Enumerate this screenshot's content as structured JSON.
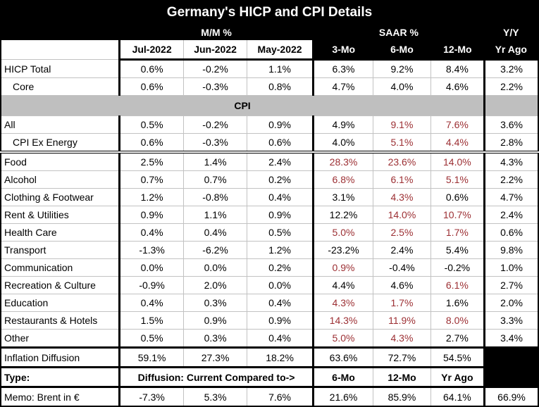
{
  "title": "Germany's HICP and CPI Details",
  "colors": {
    "red_value": "#9c2f33",
    "section_band": "#bfbfbf",
    "header_bg": "#000000"
  },
  "chart_data": {
    "type": "table",
    "title": "Germany's HICP and CPI Details",
    "column_groups": {
      "mm": "M/M %",
      "saar": "SAAR %",
      "yy": "Y/Y"
    },
    "columns": [
      "Jul-2022",
      "Jun-2022",
      "May-2022",
      "3-Mo",
      "6-Mo",
      "12-Mo",
      "Yr Ago"
    ],
    "rows": [
      {
        "kind": "data",
        "label": "HICP Total",
        "indent": false,
        "values": [
          "0.6%",
          "-0.2%",
          "1.1%",
          "6.3%",
          "9.2%",
          "8.4%",
          "3.2%"
        ],
        "red": []
      },
      {
        "kind": "data",
        "label": "Core",
        "indent": true,
        "values": [
          "0.6%",
          "-0.3%",
          "0.8%",
          "4.7%",
          "4.0%",
          "4.6%",
          "2.2%"
        ],
        "red": []
      },
      {
        "kind": "section",
        "label": "CPI"
      },
      {
        "kind": "data",
        "label": "All",
        "indent": false,
        "values": [
          "0.5%",
          "-0.2%",
          "0.9%",
          "4.9%",
          "9.1%",
          "7.6%",
          "3.6%"
        ],
        "red": [
          4,
          5
        ]
      },
      {
        "kind": "data",
        "label": "CPI Ex Energy",
        "indent": true,
        "values": [
          "0.6%",
          "-0.3%",
          "0.6%",
          "4.0%",
          "5.1%",
          "4.4%",
          "2.8%"
        ],
        "red": [
          4,
          5
        ],
        "border_bottom": "double"
      },
      {
        "kind": "data",
        "label": "Food",
        "indent": false,
        "values": [
          "2.5%",
          "1.4%",
          "2.4%",
          "28.3%",
          "23.6%",
          "14.0%",
          "4.3%"
        ],
        "red": [
          3,
          4,
          5
        ]
      },
      {
        "kind": "data",
        "label": "Alcohol",
        "indent": false,
        "values": [
          "0.7%",
          "0.7%",
          "0.2%",
          "6.8%",
          "6.1%",
          "5.1%",
          "2.2%"
        ],
        "red": [
          3,
          4,
          5
        ]
      },
      {
        "kind": "data",
        "label": "Clothing & Footwear",
        "indent": false,
        "values": [
          "1.2%",
          "-0.8%",
          "0.4%",
          "3.1%",
          "4.3%",
          "0.6%",
          "4.7%"
        ],
        "red": [
          4
        ]
      },
      {
        "kind": "data",
        "label": "Rent & Utilities",
        "indent": false,
        "values": [
          "0.9%",
          "1.1%",
          "0.9%",
          "12.2%",
          "14.0%",
          "10.7%",
          "2.4%"
        ],
        "red": [
          4,
          5
        ]
      },
      {
        "kind": "data",
        "label": "Health Care",
        "indent": false,
        "values": [
          "0.4%",
          "0.4%",
          "0.5%",
          "5.0%",
          "2.5%",
          "1.7%",
          "0.6%"
        ],
        "red": [
          3,
          4,
          5
        ]
      },
      {
        "kind": "data",
        "label": "Transport",
        "indent": false,
        "values": [
          "-1.3%",
          "-6.2%",
          "1.2%",
          "-23.2%",
          "2.4%",
          "5.4%",
          "9.8%"
        ],
        "red": []
      },
      {
        "kind": "data",
        "label": "Communication",
        "indent": false,
        "values": [
          "0.0%",
          "0.0%",
          "0.2%",
          "0.9%",
          "-0.4%",
          "-0.2%",
          "1.0%"
        ],
        "red": [
          3
        ]
      },
      {
        "kind": "data",
        "label": "Recreation & Culture",
        "indent": false,
        "values": [
          "-0.9%",
          "2.0%",
          "0.0%",
          "4.4%",
          "4.6%",
          "6.1%",
          "2.7%"
        ],
        "red": [
          5
        ]
      },
      {
        "kind": "data",
        "label": "Education",
        "indent": false,
        "values": [
          "0.4%",
          "0.3%",
          "0.4%",
          "4.3%",
          "1.7%",
          "1.6%",
          "2.0%"
        ],
        "red": [
          3,
          4
        ]
      },
      {
        "kind": "data",
        "label": "Restaurants & Hotels",
        "indent": false,
        "values": [
          "1.5%",
          "0.9%",
          "0.9%",
          "14.3%",
          "11.9%",
          "8.0%",
          "3.3%"
        ],
        "red": [
          3,
          4,
          5
        ]
      },
      {
        "kind": "data",
        "label": "Other",
        "indent": false,
        "values": [
          "0.5%",
          "0.3%",
          "0.4%",
          "5.0%",
          "4.3%",
          "2.7%",
          "3.4%"
        ],
        "red": [
          3,
          4
        ],
        "border_bottom": "thick"
      },
      {
        "kind": "data",
        "label": "Inflation Diffusion",
        "indent": false,
        "values": [
          "59.1%",
          "27.3%",
          "18.2%",
          "63.6%",
          "72.7%",
          "54.5%",
          null
        ],
        "red": [],
        "border_bottom": "thick"
      },
      {
        "kind": "typerow",
        "label": "Type:",
        "span_text": "Diffusion: Current Compared to->",
        "cols": [
          "6-Mo",
          "12-Mo",
          "Yr Ago"
        ],
        "border_bottom": "thick"
      },
      {
        "kind": "data",
        "label": "Memo: Brent in €",
        "indent": false,
        "values": [
          "-7.3%",
          "5.3%",
          "7.6%",
          "21.6%",
          "85.9%",
          "64.1%",
          "66.9%"
        ],
        "red": []
      }
    ]
  }
}
